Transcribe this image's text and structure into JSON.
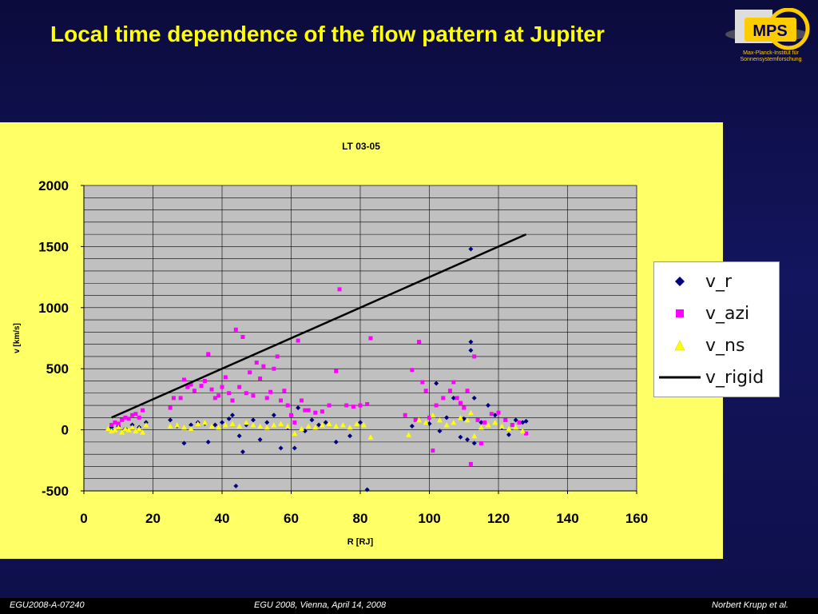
{
  "slide": {
    "title": "Local time dependence of the flow pattern at Jupiter",
    "footer_left": "EGU2008-A-07240",
    "footer_center": "EGU 2008, Vienna, April 14, 2008",
    "footer_right": "Norbert Krupp et al.",
    "logo_text": "MPS",
    "logo_subtext_1": "Max-Planck-Institut für",
    "logo_subtext_2": "Sonnensystemforschung"
  },
  "colors": {
    "title": "#ffff00",
    "panel": "#ffff66",
    "plot_bg": "#c0c0c0",
    "v_r": "#000080",
    "v_azi": "#ff00ff",
    "v_ns": "#ffff00",
    "v_rigid": "#000000"
  },
  "chart_data": {
    "type": "scatter",
    "title": "LT 03-05",
    "xlabel": "R [RJ]",
    "ylabel": "v [km/s]",
    "xlim": [
      0,
      160
    ],
    "ylim": [
      -500,
      2000
    ],
    "xticks": [
      "0",
      "20",
      "40",
      "60",
      "80",
      "100",
      "120",
      "140",
      "160"
    ],
    "yticks": [
      "-500",
      "0",
      "500",
      "1000",
      "1500",
      "2000"
    ],
    "grid": true,
    "legend_position": "right",
    "series": [
      {
        "name": "v_r",
        "marker": "diamond",
        "points": [
          [
            8,
            20
          ],
          [
            10,
            30
          ],
          [
            12,
            10
          ],
          [
            14,
            40
          ],
          [
            16,
            20
          ],
          [
            18,
            60
          ],
          [
            25,
            80
          ],
          [
            27,
            30
          ],
          [
            29,
            -110
          ],
          [
            31,
            40
          ],
          [
            33,
            60
          ],
          [
            35,
            50
          ],
          [
            36,
            -100
          ],
          [
            38,
            40
          ],
          [
            40,
            60
          ],
          [
            42,
            90
          ],
          [
            43,
            120
          ],
          [
            44,
            -460
          ],
          [
            45,
            -50
          ],
          [
            46,
            -180
          ],
          [
            47,
            40
          ],
          [
            49,
            80
          ],
          [
            51,
            -80
          ],
          [
            53,
            60
          ],
          [
            55,
            120
          ],
          [
            57,
            -150
          ],
          [
            59,
            20
          ],
          [
            61,
            -150
          ],
          [
            62,
            180
          ],
          [
            64,
            -10
          ],
          [
            66,
            80
          ],
          [
            68,
            40
          ],
          [
            70,
            60
          ],
          [
            73,
            -100
          ],
          [
            77,
            -50
          ],
          [
            80,
            60
          ],
          [
            82,
            -490
          ],
          [
            95,
            30
          ],
          [
            100,
            50
          ],
          [
            102,
            380
          ],
          [
            103,
            -10
          ],
          [
            105,
            100
          ],
          [
            107,
            260
          ],
          [
            109,
            -60
          ],
          [
            110,
            90
          ],
          [
            111,
            -80
          ],
          [
            112,
            650
          ],
          [
            112,
            1480
          ],
          [
            112,
            720
          ],
          [
            113,
            260
          ],
          [
            113,
            -110
          ],
          [
            115,
            60
          ],
          [
            117,
            200
          ],
          [
            119,
            120
          ],
          [
            121,
            20
          ],
          [
            123,
            -40
          ],
          [
            125,
            80
          ],
          [
            127,
            60
          ],
          [
            128,
            70
          ]
        ]
      },
      {
        "name": "v_azi",
        "marker": "square",
        "points": [
          [
            8,
            40
          ],
          [
            9,
            60
          ],
          [
            10,
            50
          ],
          [
            11,
            80
          ],
          [
            12,
            100
          ],
          [
            13,
            90
          ],
          [
            14,
            120
          ],
          [
            15,
            130
          ],
          [
            16,
            100
          ],
          [
            17,
            160
          ],
          [
            25,
            180
          ],
          [
            26,
            260
          ],
          [
            28,
            260
          ],
          [
            29,
            410
          ],
          [
            30,
            350
          ],
          [
            31,
            370
          ],
          [
            32,
            320
          ],
          [
            34,
            360
          ],
          [
            35,
            400
          ],
          [
            36,
            620
          ],
          [
            37,
            330
          ],
          [
            38,
            260
          ],
          [
            39,
            280
          ],
          [
            40,
            350
          ],
          [
            41,
            430
          ],
          [
            42,
            300
          ],
          [
            43,
            240
          ],
          [
            44,
            820
          ],
          [
            45,
            350
          ],
          [
            46,
            760
          ],
          [
            47,
            300
          ],
          [
            48,
            470
          ],
          [
            49,
            280
          ],
          [
            50,
            550
          ],
          [
            51,
            420
          ],
          [
            52,
            520
          ],
          [
            53,
            260
          ],
          [
            54,
            310
          ],
          [
            55,
            500
          ],
          [
            56,
            600
          ],
          [
            57,
            240
          ],
          [
            58,
            320
          ],
          [
            59,
            200
          ],
          [
            60,
            120
          ],
          [
            61,
            60
          ],
          [
            62,
            730
          ],
          [
            63,
            240
          ],
          [
            64,
            160
          ],
          [
            65,
            160
          ],
          [
            67,
            140
          ],
          [
            69,
            150
          ],
          [
            71,
            200
          ],
          [
            73,
            480
          ],
          [
            74,
            1150
          ],
          [
            76,
            200
          ],
          [
            78,
            190
          ],
          [
            80,
            200
          ],
          [
            82,
            210
          ],
          [
            83,
            750
          ],
          [
            93,
            120
          ],
          [
            95,
            490
          ],
          [
            96,
            80
          ],
          [
            97,
            720
          ],
          [
            98,
            390
          ],
          [
            99,
            320
          ],
          [
            100,
            100
          ],
          [
            101,
            -170
          ],
          [
            102,
            200
          ],
          [
            104,
            260
          ],
          [
            106,
            320
          ],
          [
            107,
            390
          ],
          [
            108,
            260
          ],
          [
            109,
            220
          ],
          [
            110,
            180
          ],
          [
            111,
            320
          ],
          [
            112,
            -280
          ],
          [
            113,
            600
          ],
          [
            114,
            80
          ],
          [
            115,
            -110
          ],
          [
            116,
            60
          ],
          [
            118,
            130
          ],
          [
            120,
            140
          ],
          [
            122,
            80
          ],
          [
            124,
            40
          ],
          [
            126,
            60
          ],
          [
            128,
            -30
          ]
        ]
      },
      {
        "name": "v_ns",
        "marker": "triangle",
        "points": [
          [
            7,
            10
          ],
          [
            8,
            -10
          ],
          [
            9,
            0
          ],
          [
            10,
            20
          ],
          [
            11,
            -20
          ],
          [
            12,
            10
          ],
          [
            13,
            0
          ],
          [
            14,
            20
          ],
          [
            15,
            -10
          ],
          [
            16,
            10
          ],
          [
            17,
            -20
          ],
          [
            18,
            40
          ],
          [
            25,
            30
          ],
          [
            27,
            40
          ],
          [
            29,
            20
          ],
          [
            31,
            10
          ],
          [
            33,
            50
          ],
          [
            35,
            60
          ],
          [
            37,
            30
          ],
          [
            39,
            20
          ],
          [
            41,
            40
          ],
          [
            43,
            50
          ],
          [
            45,
            30
          ],
          [
            47,
            60
          ],
          [
            49,
            40
          ],
          [
            51,
            30
          ],
          [
            53,
            20
          ],
          [
            55,
            40
          ],
          [
            57,
            50
          ],
          [
            59,
            30
          ],
          [
            61,
            -30
          ],
          [
            63,
            10
          ],
          [
            65,
            30
          ],
          [
            67,
            20
          ],
          [
            69,
            40
          ],
          [
            71,
            50
          ],
          [
            73,
            30
          ],
          [
            75,
            40
          ],
          [
            77,
            20
          ],
          [
            79,
            50
          ],
          [
            81,
            40
          ],
          [
            83,
            -60
          ],
          [
            94,
            -40
          ],
          [
            97,
            80
          ],
          [
            99,
            60
          ],
          [
            101,
            120
          ],
          [
            103,
            80
          ],
          [
            105,
            40
          ],
          [
            107,
            60
          ],
          [
            109,
            100
          ],
          [
            111,
            80
          ],
          [
            112,
            140
          ],
          [
            113,
            -50
          ],
          [
            115,
            20
          ],
          [
            117,
            40
          ],
          [
            119,
            60
          ],
          [
            121,
            30
          ],
          [
            123,
            10
          ],
          [
            125,
            20
          ],
          [
            127,
            -10
          ]
        ]
      },
      {
        "name": "v_rigid",
        "marker": "line",
        "points": [
          [
            8,
            100
          ],
          [
            128,
            1600
          ]
        ]
      }
    ]
  }
}
